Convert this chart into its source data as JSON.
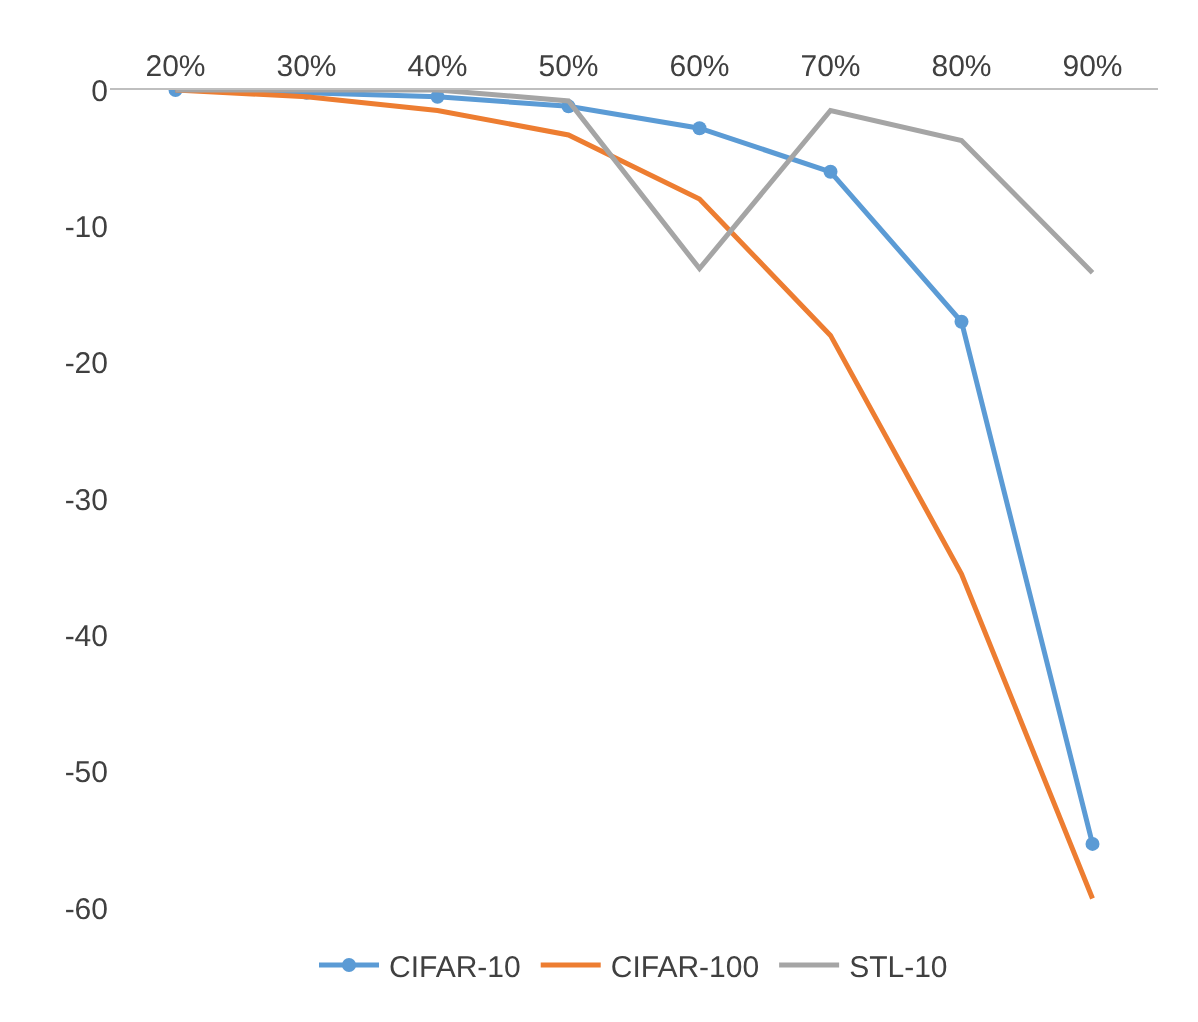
{
  "chart_data": {
    "type": "line",
    "categories": [
      "20%",
      "30%",
      "40%",
      "50%",
      "60%",
      "70%",
      "80%",
      "90%"
    ],
    "series": [
      {
        "name": "CIFAR-10",
        "color": "#5b9bd5",
        "marker": "circle",
        "values": [
          0,
          -0.2,
          -0.5,
          -1.2,
          -2.8,
          -6,
          -17,
          -55.3
        ]
      },
      {
        "name": "CIFAR-100",
        "color": "#ed7d31",
        "marker": "none",
        "values": [
          0,
          -0.5,
          -1.5,
          -3.3,
          -8,
          -18,
          -35.5,
          -59.3
        ]
      },
      {
        "name": "STL-10",
        "color": "#a5a5a5",
        "marker": "none",
        "values": [
          0,
          0,
          0,
          -0.8,
          -13.1,
          -1.5,
          -3.7,
          -13.4
        ]
      }
    ],
    "ylim": [
      -60,
      0
    ],
    "yticks": [
      0,
      -10,
      -20,
      -30,
      -40,
      -50,
      -60
    ],
    "grid": false,
    "legend": "bottom",
    "line_style": "solid"
  }
}
